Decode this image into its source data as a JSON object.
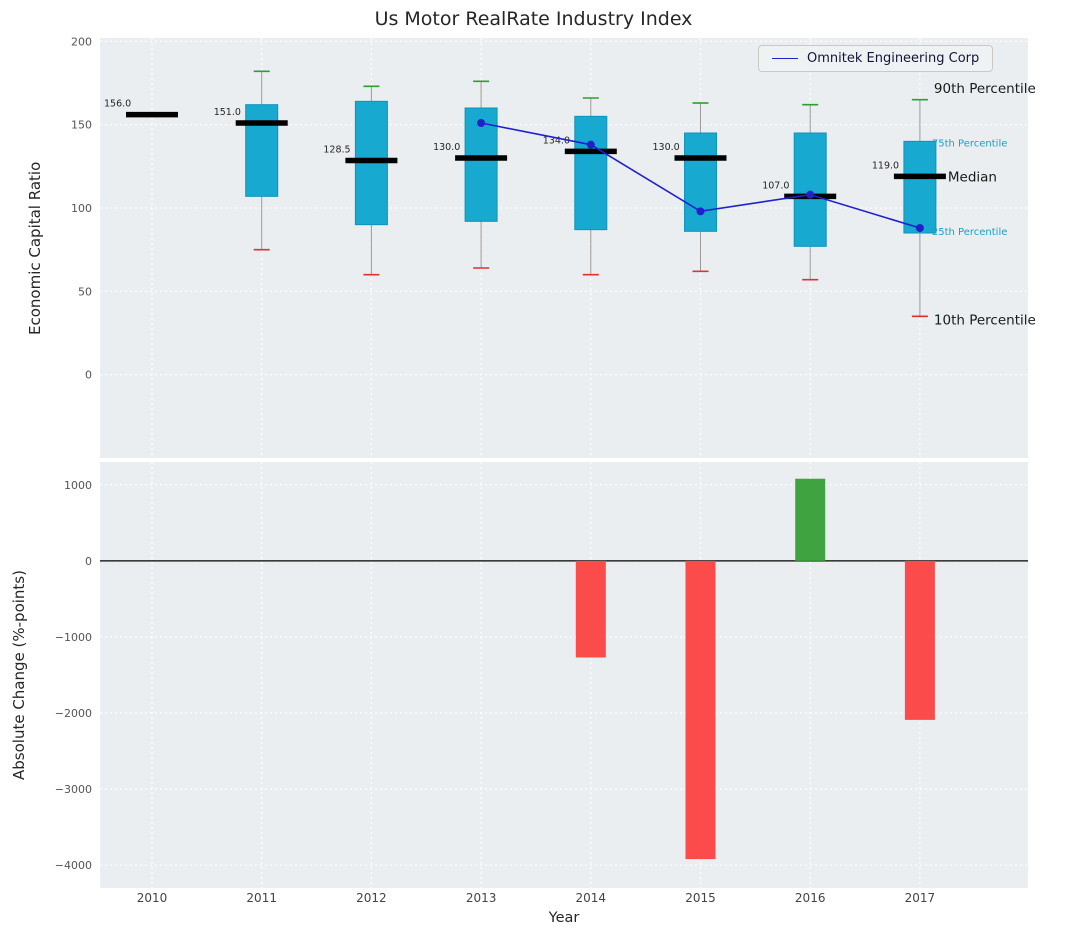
{
  "title": "Us Motor RealRate Industry Index",
  "axes": {
    "top_ylabel": "Economic Capital Ratio",
    "bottom_ylabel": "Absolute Change (%-points)",
    "xlabel": "Year"
  },
  "legend": {
    "series_label": "Omnitek Engineering Corp"
  },
  "colors": {
    "panel_bg": "#eaeef0",
    "grid": "#ffffff",
    "box_fill": "#17a9cf",
    "box_edge": "#1193bb",
    "median": "#000000",
    "whisker": "#9a9a9a",
    "cap_top": "#2ca02c",
    "cap_bottom": "#e03131",
    "company_line": "#2121cc",
    "bar_negative": "#fb4b4b",
    "bar_positive": "#3fa33f",
    "tick_label": "#555555",
    "annotation": "#262626",
    "percentile_label_dark": "#1a1a1a",
    "percentile_label_cyan": "#19a0c9",
    "zero_line": "#000000"
  },
  "chart_data": [
    {
      "type": "boxplot_with_line",
      "title": "Us Motor RealRate Industry Index",
      "ylabel": "Economic Capital Ratio",
      "ylim": [
        -50,
        202
      ],
      "yticks": [
        200,
        150,
        100,
        50,
        0
      ],
      "grid": true,
      "years": [
        2010,
        2011,
        2012,
        2013,
        2014,
        2015,
        2016,
        2017
      ],
      "median_labels": [
        "156.0",
        "151.0",
        "128.5",
        "130.0",
        "134.0",
        "130.0",
        "107.0",
        "119.0"
      ],
      "boxes": [
        {
          "year": 2010,
          "p10": null,
          "p25": null,
          "median": 156.0,
          "p75": null,
          "p90": null
        },
        {
          "year": 2011,
          "p10": 75,
          "p25": 107,
          "median": 151.0,
          "p75": 162,
          "p90": 182
        },
        {
          "year": 2012,
          "p10": 60,
          "p25": 90,
          "median": 128.5,
          "p75": 164,
          "p90": 173
        },
        {
          "year": 2013,
          "p10": 64,
          "p25": 92,
          "median": 130.0,
          "p75": 160,
          "p90": 176
        },
        {
          "year": 2014,
          "p10": 60,
          "p25": 87,
          "median": 134.0,
          "p75": 155,
          "p90": 166
        },
        {
          "year": 2015,
          "p10": 62,
          "p25": 86,
          "median": 130.0,
          "p75": 145,
          "p90": 163
        },
        {
          "year": 2016,
          "p10": 57,
          "p25": 77,
          "median": 107.0,
          "p75": 145,
          "p90": 162
        },
        {
          "year": 2017,
          "p10": 35,
          "p25": 85,
          "median": 119.0,
          "p75": 140,
          "p90": 165
        }
      ],
      "company_series": {
        "name": "Omnitek Engineering Corp",
        "x": [
          2013,
          2014,
          2015,
          2016,
          2017
        ],
        "y": [
          151,
          138,
          98,
          108,
          88
        ]
      },
      "percentile_labels": [
        {
          "text": "90th Percentile",
          "value": 172,
          "style": "dark",
          "dx": 14
        },
        {
          "text": "75th Percentile",
          "value": 139,
          "style": "cyan",
          "dx": 12
        },
        {
          "text": "Median",
          "value": 119,
          "style": "dark",
          "dx": 28
        },
        {
          "text": "25th Percentile",
          "value": 86,
          "style": "cyan",
          "dx": 12
        },
        {
          "text": "10th Percentile",
          "value": 33,
          "style": "dark",
          "dx": 14
        }
      ],
      "legend_entries": [
        "Omnitek Engineering Corp"
      ],
      "legend_position": "upper right"
    },
    {
      "type": "bar",
      "ylabel": "Absolute Change (%-points)",
      "xlabel": "Year",
      "categories": [
        2010,
        2011,
        2012,
        2013,
        2014,
        2015,
        2016,
        2017
      ],
      "values": [
        null,
        null,
        null,
        null,
        -1270,
        -3920,
        1080,
        -2090
      ],
      "ylim": [
        -4300,
        1300
      ],
      "yticks": [
        1000,
        0,
        -1000,
        -2000,
        -3000,
        -4000
      ],
      "grid": true
    }
  ]
}
